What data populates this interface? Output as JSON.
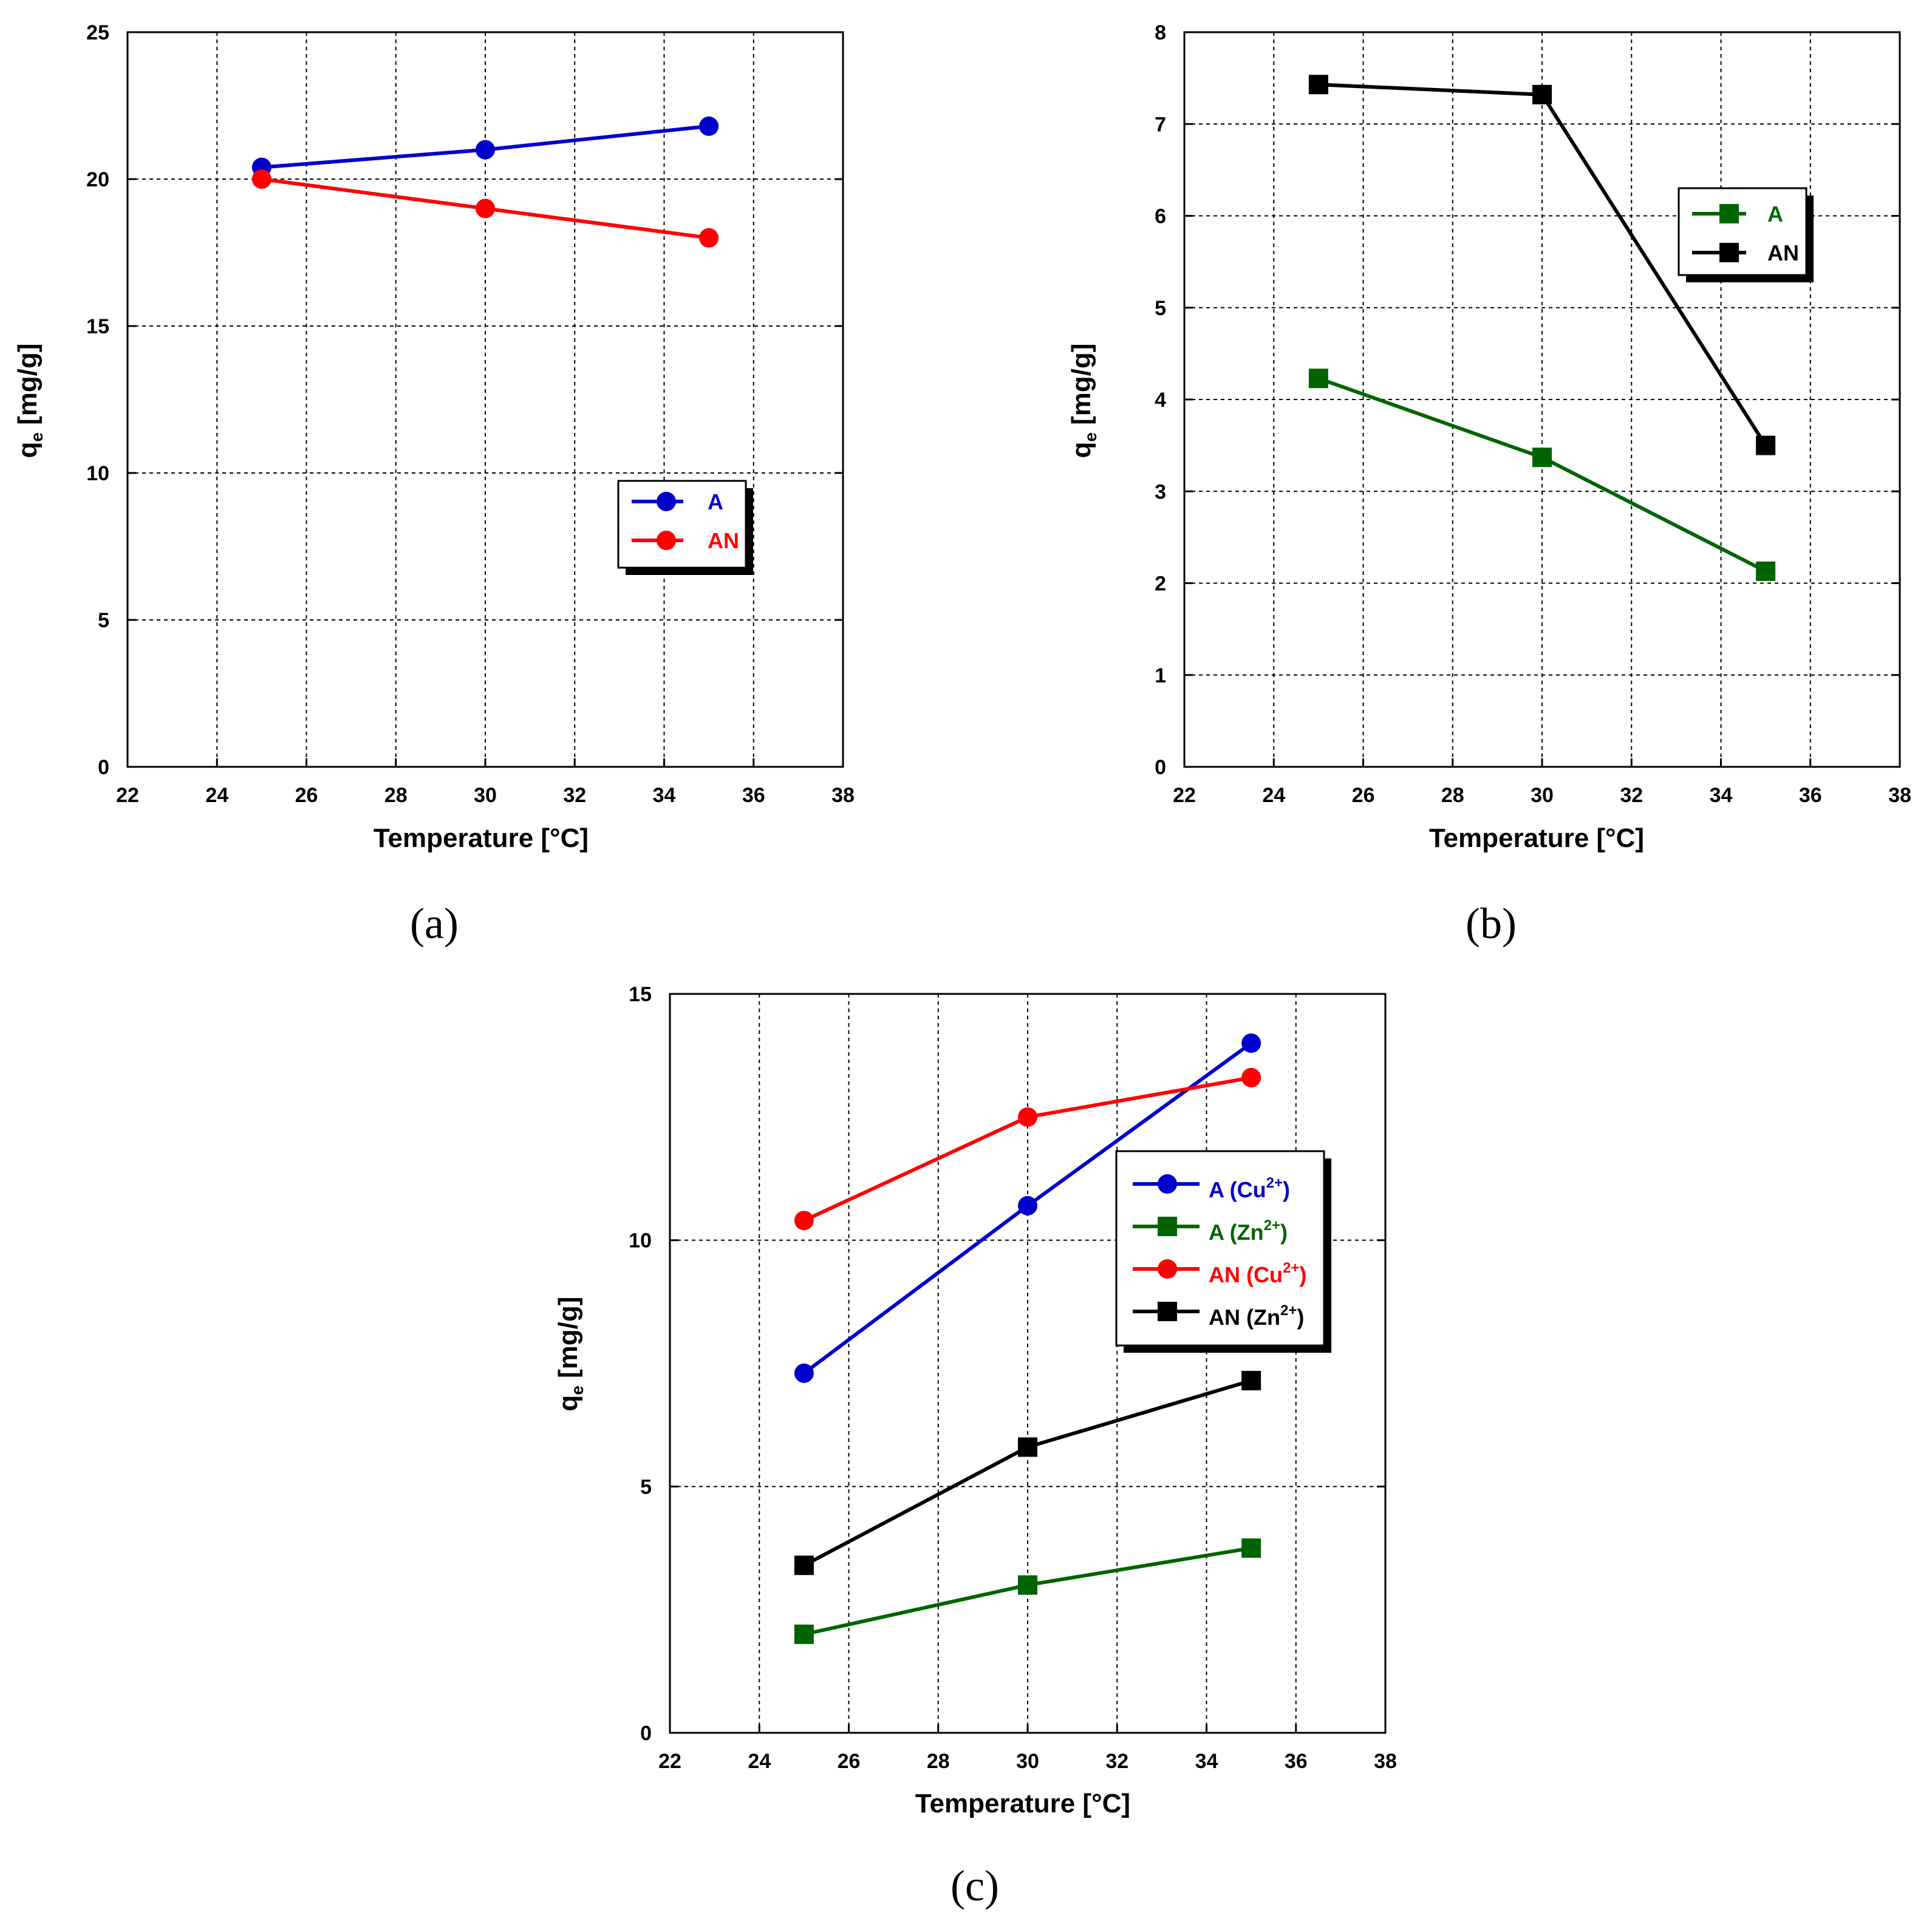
{
  "chart_data": [
    {
      "type": "line",
      "panel_label": "(a)",
      "xlabel": "Temperature [°C]",
      "ylabel": "q",
      "ylabel_sub": "e",
      "ylabel_unit": " [mg/g]",
      "xlim": [
        22,
        38
      ],
      "ylim": [
        0,
        25
      ],
      "xticks": [
        22,
        24,
        26,
        28,
        30,
        32,
        34,
        36,
        38
      ],
      "yticks": [
        0,
        5,
        10,
        15,
        20,
        25
      ],
      "grid": true,
      "legend_position": "center-right",
      "series": [
        {
          "name": "A",
          "legend_label": "A",
          "color": "#0000CC",
          "marker": "circle",
          "x": [
            25,
            30,
            35
          ],
          "y": [
            20.4,
            21.0,
            21.8
          ]
        },
        {
          "name": "AN",
          "legend_label": "AN",
          "color": "#FF0000",
          "marker": "circle",
          "x": [
            25,
            30,
            35
          ],
          "y": [
            20.0,
            19.0,
            18.0
          ]
        }
      ]
    },
    {
      "type": "line",
      "panel_label": "(b)",
      "xlabel": "Temperature [°C]",
      "ylabel": "q",
      "ylabel_sub": "e",
      "ylabel_unit": " [mg/g]",
      "xlim": [
        22,
        38
      ],
      "ylim": [
        0,
        8
      ],
      "xticks": [
        22,
        24,
        26,
        28,
        30,
        32,
        34,
        36,
        38
      ],
      "yticks": [
        0,
        1,
        2,
        3,
        4,
        5,
        6,
        7,
        8
      ],
      "grid": true,
      "legend_position": "top-right",
      "series": [
        {
          "name": "A",
          "legend_label": "A",
          "color": "#006400",
          "marker": "square",
          "x": [
            25,
            30,
            35
          ],
          "y": [
            4.23,
            3.37,
            2.13
          ]
        },
        {
          "name": "AN",
          "legend_label": "AN",
          "color": "#000000",
          "marker": "square",
          "x": [
            25,
            30,
            35
          ],
          "y": [
            7.43,
            7.32,
            3.5
          ]
        }
      ]
    },
    {
      "type": "line",
      "panel_label": "(c)",
      "xlabel": "Temperature [°C]",
      "ylabel": "q",
      "ylabel_sub": "e",
      "ylabel_unit": " [mg/g]",
      "xlim": [
        22,
        38
      ],
      "ylim": [
        0,
        15
      ],
      "xticks": [
        22,
        24,
        26,
        28,
        30,
        32,
        34,
        36,
        38
      ],
      "yticks": [
        0,
        5,
        10,
        15
      ],
      "grid": true,
      "legend_position": "center-right",
      "series": [
        {
          "name": "A (Cu2+)",
          "legend_label": "A (Cu",
          "legend_sup": "2+",
          "legend_suffix": ")",
          "color": "#0000CC",
          "marker": "circle",
          "x": [
            25,
            30,
            35
          ],
          "y": [
            7.3,
            10.7,
            14.0
          ]
        },
        {
          "name": "A (Zn2+)",
          "legend_label": "A (Zn",
          "legend_sup": "2+",
          "legend_suffix": ")",
          "color": "#006400",
          "marker": "square",
          "x": [
            25,
            30,
            35
          ],
          "y": [
            2.0,
            3.0,
            3.75
          ]
        },
        {
          "name": "AN (Cu2+)",
          "legend_label": "AN (Cu",
          "legend_sup": "2+",
          "legend_suffix": ")",
          "color": "#FF0000",
          "marker": "circle",
          "x": [
            25,
            30,
            35
          ],
          "y": [
            10.4,
            12.5,
            13.3
          ]
        },
        {
          "name": "AN (Zn2+)",
          "legend_label": "AN (Zn",
          "legend_sup": "2+",
          "legend_suffix": ")",
          "color": "#000000",
          "marker": "square",
          "x": [
            25,
            30,
            35
          ],
          "y": [
            3.4,
            5.8,
            7.15
          ]
        }
      ]
    }
  ]
}
